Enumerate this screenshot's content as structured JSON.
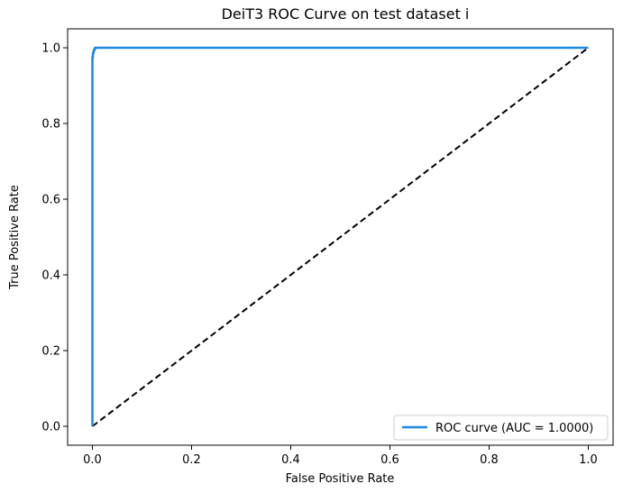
{
  "chart_data": {
    "type": "line",
    "title": "DeiT3 ROC Curve on test dataset i",
    "xlabel": "False Positive Rate",
    "ylabel": "True Positive Rate",
    "xlim": [
      -0.05,
      1.05
    ],
    "ylim": [
      -0.05,
      1.05
    ],
    "x_ticks": [
      0.0,
      0.2,
      0.4,
      0.6,
      0.8,
      1.0
    ],
    "y_ticks": [
      0.0,
      0.2,
      0.4,
      0.6,
      0.8,
      1.0
    ],
    "x_tick_labels": [
      "0.0",
      "0.2",
      "0.4",
      "0.6",
      "0.8",
      "1.0"
    ],
    "y_tick_labels": [
      "0.0",
      "0.2",
      "0.4",
      "0.6",
      "0.8",
      "1.0"
    ],
    "grid": false,
    "legend_placement": "lower-right",
    "series": [
      {
        "name": "ROC curve (AUC = 1.0000)",
        "color": "#1e88e5",
        "style": "solid",
        "x": [
          0.0,
          0.0,
          0.0,
          0.001,
          0.001,
          0.002,
          0.002,
          0.003,
          0.003,
          0.005,
          0.005,
          1.0
        ],
        "y": [
          0.0,
          0.97,
          0.975,
          0.975,
          0.985,
          0.985,
          0.99,
          0.99,
          0.995,
          0.995,
          1.0,
          1.0
        ]
      },
      {
        "name": "",
        "color": "#000000",
        "style": "dashed",
        "x": [
          0.0,
          1.0
        ],
        "y": [
          0.0,
          1.0
        ]
      }
    ]
  }
}
